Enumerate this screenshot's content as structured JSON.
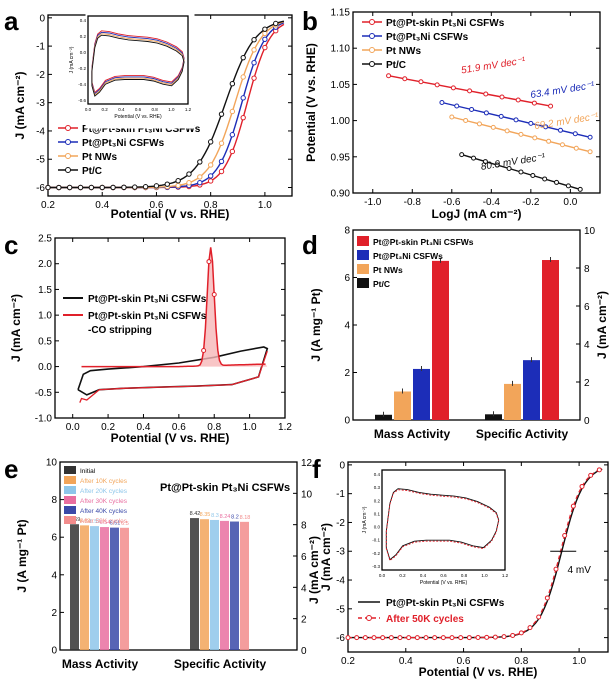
{
  "colors": {
    "red": "#e0202a",
    "blue": "#1c2db8",
    "orange": "#f2a55a",
    "black": "#111111",
    "pink_fill": "#f6b6b8"
  },
  "chart_data": [
    {
      "panel": "a",
      "type": "line",
      "xlabel": "Potential (V vs. RHE)",
      "ylabel": "J (mA cm⁻²)",
      "xlim": [
        0.2,
        1.1
      ],
      "ylim": [
        -6.3,
        0.1
      ],
      "xticks": [
        "0.2",
        "0.4",
        "0.6",
        "0.8",
        "1.0"
      ],
      "yticks": [
        "0",
        "-1",
        "-2",
        "-3",
        "-4",
        "-5",
        "-6"
      ],
      "series": [
        {
          "name": "Pt@Pt-skin Pt₃Ni CSFWs",
          "color": "red",
          "E_half": 0.935,
          "width": 0.042
        },
        {
          "name": "Pt@Pt₃Ni CSFWs",
          "color": "blue",
          "E_half": 0.915,
          "width": 0.044
        },
        {
          "name": "Pt NWs",
          "color": "orange",
          "E_half": 0.89,
          "width": 0.048
        },
        {
          "name": "Pt/C",
          "color": "black",
          "E_half": 0.855,
          "width": 0.055
        }
      ],
      "inset": {
        "xlabel": "Potential (V vs. RHE)",
        "ylabel": "J (mA cm⁻²)",
        "xticks": [
          "0.0",
          "0.2",
          "0.4",
          "0.6",
          "0.8",
          "1.0",
          "1.2"
        ],
        "yticks": [
          "0.4",
          "0.2",
          "0.0",
          "-0.2",
          "-0.4",
          "-0.6"
        ]
      }
    },
    {
      "panel": "b",
      "type": "line",
      "xlabel": "LogJ (mA cm⁻²)",
      "ylabel": "Potential (V vs. RHE)",
      "xlim": [
        -1.1,
        0.15
      ],
      "ylim": [
        0.9,
        1.15
      ],
      "xticks": [
        "-1.0",
        "-0.8",
        "-0.6",
        "-0.4",
        "-0.2",
        "0.0"
      ],
      "yticks": [
        "1.15",
        "1.10",
        "1.05",
        "1.00",
        "0.95",
        "0.90"
      ],
      "series": [
        {
          "name": "Pt@Pt-skin Pt₃Ni CSFWs",
          "color": "red",
          "x": [
            -0.92,
            -0.1
          ],
          "y": [
            1.062,
            1.02
          ],
          "slope_label": "51.9 mV dec⁻¹"
        },
        {
          "name": "Pt@Pt₃Ni CSFWs",
          "color": "blue",
          "x": [
            -0.65,
            0.1
          ],
          "y": [
            1.025,
            0.977
          ],
          "slope_label": "63.4 mV dec⁻¹"
        },
        {
          "name": "Pt NWs",
          "color": "orange",
          "x": [
            -0.6,
            0.1
          ],
          "y": [
            1.005,
            0.957
          ],
          "slope_label": "69.2 mV dec⁻¹"
        },
        {
          "name": "Pt/C",
          "color": "black",
          "x": [
            -0.55,
            0.05
          ],
          "y": [
            0.953,
            0.905
          ],
          "slope_label": "80.9 mV dec⁻¹"
        }
      ]
    },
    {
      "panel": "c",
      "type": "line",
      "xlabel": "Potential (V vs. RHE)",
      "ylabel": "J (mA cm⁻²)",
      "xlim": [
        -0.1,
        1.2
      ],
      "ylim": [
        -1.0,
        2.5
      ],
      "xticks": [
        "0.0",
        "0.2",
        "0.4",
        "0.6",
        "0.8",
        "1.0",
        "1.2"
      ],
      "yticks": [
        "2.5",
        "2.0",
        "1.5",
        "1.0",
        "0.5",
        "0.0",
        "-0.5",
        "-1.0"
      ],
      "series": [
        {
          "name": "Pt@Pt-skin Pt₃Ni CSFWs",
          "color": "black"
        },
        {
          "name": "Pt@Pt-skin Pt₃Ni CSFWs",
          "name2": "-CO stripping",
          "color": "red",
          "peak_x": 0.78,
          "peak_y": 2.3
        }
      ]
    },
    {
      "panel": "d",
      "type": "bar",
      "categories": [
        "Mass Activity",
        "Specific Activity"
      ],
      "ylabel_left": "J (A mg⁻¹ Pt)",
      "ylabel_right": "J (mA cm⁻²)",
      "ylim_left": [
        0,
        8
      ],
      "ylim_right": [
        0,
        10
      ],
      "yticks_left": [
        "0",
        "2",
        "4",
        "6",
        "8"
      ],
      "yticks_right": [
        "0",
        "2",
        "4",
        "6",
        "8",
        "10"
      ],
      "series": [
        {
          "name": "Pt/C",
          "color": "black",
          "values": [
            0.22,
            0.3
          ]
        },
        {
          "name": "Pt NWs",
          "color": "orange",
          "values": [
            1.2,
            1.9
          ]
        },
        {
          "name": "Pt@Pt₃Ni CSFWs",
          "color": "blue",
          "values": [
            2.15,
            3.15
          ]
        },
        {
          "name": "Pt@Pt-skin Pt₃Ni CSFWs",
          "color": "red",
          "values": [
            6.7,
            8.42
          ]
        }
      ],
      "legend_order": [
        "Pt@Pt-skin Pt₃Ni CSFWs",
        "Pt@Pt₃Ni CSFWs",
        "Pt NWs",
        "Pt/C"
      ]
    },
    {
      "panel": "e",
      "type": "bar",
      "title": "Pt@Pt-skin Pt₃Ni CSFWs",
      "categories": [
        "Mass Activity",
        "Specific Activity"
      ],
      "ylabel_left": "J (A mg⁻¹ Pt)",
      "ylabel_right": "J (mA cm⁻²)",
      "ylim_left": [
        0,
        10
      ],
      "ylim_right": [
        0,
        12
      ],
      "yticks_left": [
        "0",
        "2",
        "4",
        "6",
        "8",
        "10"
      ],
      "yticks_right": [
        "0",
        "2",
        "4",
        "6",
        "8",
        "10",
        "12"
      ],
      "series": [
        {
          "name": "Initial",
          "color": "#333333",
          "values": [
            6.69,
            8.42
          ],
          "labels": [
            "6.69",
            "8.42"
          ]
        },
        {
          "name": "After 10K cycles",
          "color": "#f2a55a",
          "values": [
            6.63,
            8.35
          ],
          "labels": [
            "6.63",
            "8.35"
          ]
        },
        {
          "name": "After 20K cycles",
          "color": "#8ec6ea",
          "values": [
            6.59,
            8.3
          ],
          "labels": [
            "6.59",
            "8.3"
          ]
        },
        {
          "name": "After 30K cycles",
          "color": "#e96fa0",
          "values": [
            6.54,
            8.24
          ],
          "labels": [
            "6.54",
            "8.24"
          ]
        },
        {
          "name": "After 40K cycles",
          "color": "#3a49a8",
          "values": [
            6.51,
            8.2
          ],
          "labels": [
            "6.51",
            "8.2"
          ]
        },
        {
          "name": "After 50K cycles",
          "color": "#f28c8c",
          "values": [
            6.5,
            8.18
          ],
          "labels": [
            "6.5",
            "8.18"
          ]
        }
      ]
    },
    {
      "panel": "f",
      "type": "line",
      "xlabel": "Potential (V vs. RHE)",
      "ylabel": "J (mA cm⁻²)",
      "xlim": [
        0.2,
        1.1
      ],
      "ylim": [
        -6.5,
        0.1
      ],
      "xticks": [
        "0.2",
        "0.4",
        "0.6",
        "0.8",
        "1.0"
      ],
      "yticks": [
        "0",
        "-1",
        "-2",
        "-3",
        "-4",
        "-5",
        "-6"
      ],
      "series": [
        {
          "name": "Pt@Pt-skin Pt₃Ni CSFWs",
          "color": "black",
          "E_half": 0.94
        },
        {
          "name": "After 50K cycles",
          "color": "red",
          "E_half": 0.936
        }
      ],
      "annotation": "4 mV",
      "inset": {
        "xlabel": "Potential (V vs. RHE)",
        "ylabel": "J (mA cm⁻²)",
        "xticks": [
          "0.0",
          "0.2",
          "0.4",
          "0.6",
          "0.8",
          "1.0",
          "1.2"
        ],
        "yticks": [
          "0.4",
          "0.3",
          "0.2",
          "0.1",
          "0.0",
          "-0.1",
          "-0.2",
          "-0.3"
        ]
      }
    }
  ],
  "labels": {
    "a": "a",
    "b": "b",
    "c": "c",
    "d": "d",
    "e": "e",
    "f": "f"
  }
}
